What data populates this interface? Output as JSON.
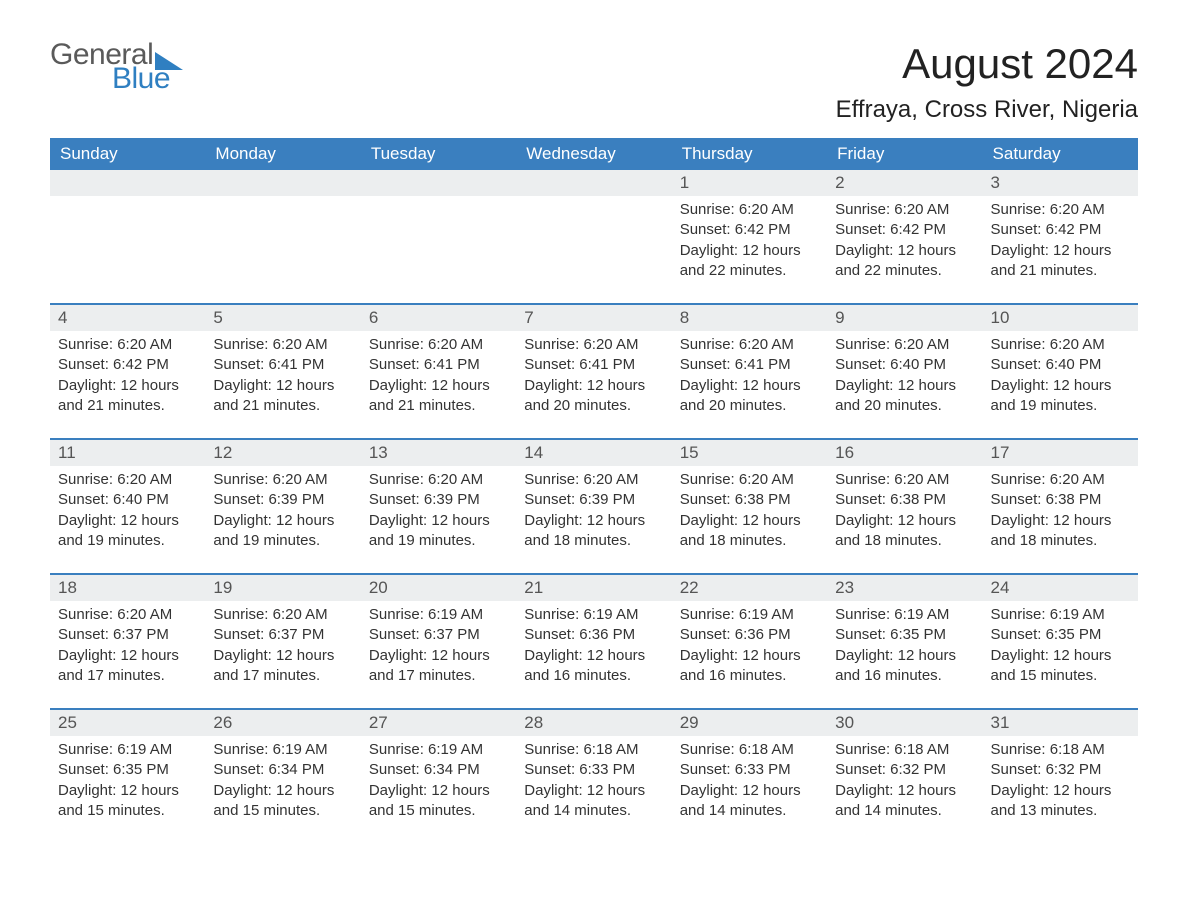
{
  "brand": {
    "text1": "General",
    "text2": "Blue",
    "accent_color": "#2f7fc1",
    "text_color": "#5a5a5a"
  },
  "title": "August 2024",
  "location": "Effraya, Cross River, Nigeria",
  "colors": {
    "header_bg": "#3a7fbf",
    "header_text": "#ffffff",
    "daynum_bg": "#eceeef",
    "daynum_text": "#555555",
    "body_text": "#333333",
    "page_bg": "#ffffff",
    "week_border": "#3a7fbf"
  },
  "fonts": {
    "title_size_pt": 32,
    "location_size_pt": 18,
    "weekday_size_pt": 13,
    "body_size_pt": 11
  },
  "weekdays": [
    "Sunday",
    "Monday",
    "Tuesday",
    "Wednesday",
    "Thursday",
    "Friday",
    "Saturday"
  ],
  "weeks": [
    [
      {
        "n": "",
        "sunrise": "",
        "sunset": "",
        "daylight": ""
      },
      {
        "n": "",
        "sunrise": "",
        "sunset": "",
        "daylight": ""
      },
      {
        "n": "",
        "sunrise": "",
        "sunset": "",
        "daylight": ""
      },
      {
        "n": "",
        "sunrise": "",
        "sunset": "",
        "daylight": ""
      },
      {
        "n": "1",
        "sunrise": "Sunrise: 6:20 AM",
        "sunset": "Sunset: 6:42 PM",
        "daylight": "Daylight: 12 hours and 22 minutes."
      },
      {
        "n": "2",
        "sunrise": "Sunrise: 6:20 AM",
        "sunset": "Sunset: 6:42 PM",
        "daylight": "Daylight: 12 hours and 22 minutes."
      },
      {
        "n": "3",
        "sunrise": "Sunrise: 6:20 AM",
        "sunset": "Sunset: 6:42 PM",
        "daylight": "Daylight: 12 hours and 21 minutes."
      }
    ],
    [
      {
        "n": "4",
        "sunrise": "Sunrise: 6:20 AM",
        "sunset": "Sunset: 6:42 PM",
        "daylight": "Daylight: 12 hours and 21 minutes."
      },
      {
        "n": "5",
        "sunrise": "Sunrise: 6:20 AM",
        "sunset": "Sunset: 6:41 PM",
        "daylight": "Daylight: 12 hours and 21 minutes."
      },
      {
        "n": "6",
        "sunrise": "Sunrise: 6:20 AM",
        "sunset": "Sunset: 6:41 PM",
        "daylight": "Daylight: 12 hours and 21 minutes."
      },
      {
        "n": "7",
        "sunrise": "Sunrise: 6:20 AM",
        "sunset": "Sunset: 6:41 PM",
        "daylight": "Daylight: 12 hours and 20 minutes."
      },
      {
        "n": "8",
        "sunrise": "Sunrise: 6:20 AM",
        "sunset": "Sunset: 6:41 PM",
        "daylight": "Daylight: 12 hours and 20 minutes."
      },
      {
        "n": "9",
        "sunrise": "Sunrise: 6:20 AM",
        "sunset": "Sunset: 6:40 PM",
        "daylight": "Daylight: 12 hours and 20 minutes."
      },
      {
        "n": "10",
        "sunrise": "Sunrise: 6:20 AM",
        "sunset": "Sunset: 6:40 PM",
        "daylight": "Daylight: 12 hours and 19 minutes."
      }
    ],
    [
      {
        "n": "11",
        "sunrise": "Sunrise: 6:20 AM",
        "sunset": "Sunset: 6:40 PM",
        "daylight": "Daylight: 12 hours and 19 minutes."
      },
      {
        "n": "12",
        "sunrise": "Sunrise: 6:20 AM",
        "sunset": "Sunset: 6:39 PM",
        "daylight": "Daylight: 12 hours and 19 minutes."
      },
      {
        "n": "13",
        "sunrise": "Sunrise: 6:20 AM",
        "sunset": "Sunset: 6:39 PM",
        "daylight": "Daylight: 12 hours and 19 minutes."
      },
      {
        "n": "14",
        "sunrise": "Sunrise: 6:20 AM",
        "sunset": "Sunset: 6:39 PM",
        "daylight": "Daylight: 12 hours and 18 minutes."
      },
      {
        "n": "15",
        "sunrise": "Sunrise: 6:20 AM",
        "sunset": "Sunset: 6:38 PM",
        "daylight": "Daylight: 12 hours and 18 minutes."
      },
      {
        "n": "16",
        "sunrise": "Sunrise: 6:20 AM",
        "sunset": "Sunset: 6:38 PM",
        "daylight": "Daylight: 12 hours and 18 minutes."
      },
      {
        "n": "17",
        "sunrise": "Sunrise: 6:20 AM",
        "sunset": "Sunset: 6:38 PM",
        "daylight": "Daylight: 12 hours and 18 minutes."
      }
    ],
    [
      {
        "n": "18",
        "sunrise": "Sunrise: 6:20 AM",
        "sunset": "Sunset: 6:37 PM",
        "daylight": "Daylight: 12 hours and 17 minutes."
      },
      {
        "n": "19",
        "sunrise": "Sunrise: 6:20 AM",
        "sunset": "Sunset: 6:37 PM",
        "daylight": "Daylight: 12 hours and 17 minutes."
      },
      {
        "n": "20",
        "sunrise": "Sunrise: 6:19 AM",
        "sunset": "Sunset: 6:37 PM",
        "daylight": "Daylight: 12 hours and 17 minutes."
      },
      {
        "n": "21",
        "sunrise": "Sunrise: 6:19 AM",
        "sunset": "Sunset: 6:36 PM",
        "daylight": "Daylight: 12 hours and 16 minutes."
      },
      {
        "n": "22",
        "sunrise": "Sunrise: 6:19 AM",
        "sunset": "Sunset: 6:36 PM",
        "daylight": "Daylight: 12 hours and 16 minutes."
      },
      {
        "n": "23",
        "sunrise": "Sunrise: 6:19 AM",
        "sunset": "Sunset: 6:35 PM",
        "daylight": "Daylight: 12 hours and 16 minutes."
      },
      {
        "n": "24",
        "sunrise": "Sunrise: 6:19 AM",
        "sunset": "Sunset: 6:35 PM",
        "daylight": "Daylight: 12 hours and 15 minutes."
      }
    ],
    [
      {
        "n": "25",
        "sunrise": "Sunrise: 6:19 AM",
        "sunset": "Sunset: 6:35 PM",
        "daylight": "Daylight: 12 hours and 15 minutes."
      },
      {
        "n": "26",
        "sunrise": "Sunrise: 6:19 AM",
        "sunset": "Sunset: 6:34 PM",
        "daylight": "Daylight: 12 hours and 15 minutes."
      },
      {
        "n": "27",
        "sunrise": "Sunrise: 6:19 AM",
        "sunset": "Sunset: 6:34 PM",
        "daylight": "Daylight: 12 hours and 15 minutes."
      },
      {
        "n": "28",
        "sunrise": "Sunrise: 6:18 AM",
        "sunset": "Sunset: 6:33 PM",
        "daylight": "Daylight: 12 hours and 14 minutes."
      },
      {
        "n": "29",
        "sunrise": "Sunrise: 6:18 AM",
        "sunset": "Sunset: 6:33 PM",
        "daylight": "Daylight: 12 hours and 14 minutes."
      },
      {
        "n": "30",
        "sunrise": "Sunrise: 6:18 AM",
        "sunset": "Sunset: 6:32 PM",
        "daylight": "Daylight: 12 hours and 14 minutes."
      },
      {
        "n": "31",
        "sunrise": "Sunrise: 6:18 AM",
        "sunset": "Sunset: 6:32 PM",
        "daylight": "Daylight: 12 hours and 13 minutes."
      }
    ]
  ]
}
